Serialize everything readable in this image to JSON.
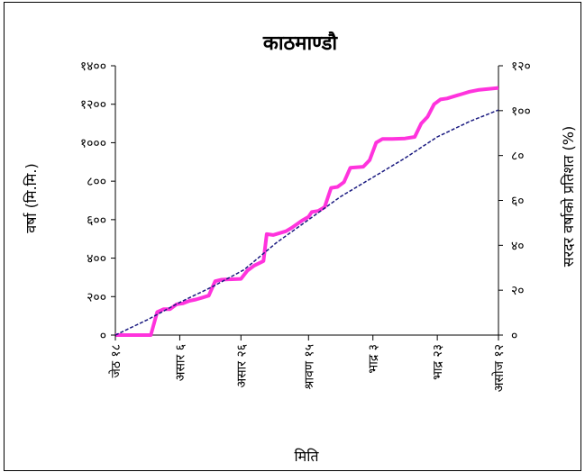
{
  "chart_data": {
    "type": "line",
    "title": "काठमाण्डौ",
    "xlabel": "मिति",
    "ylabel_left": "वर्षा (मि.मि.)",
    "ylabel_right": "सरदर वर्षाको प्रतिशत (%)",
    "ylim_left": [
      0,
      1400
    ],
    "ylim_right": [
      0,
      120
    ],
    "yticks_left": [
      {
        "value": 0,
        "label": "०"
      },
      {
        "value": 200,
        "label": "२००"
      },
      {
        "value": 400,
        "label": "४००"
      },
      {
        "value": 600,
        "label": "६००"
      },
      {
        "value": 800,
        "label": "८००"
      },
      {
        "value": 1000,
        "label": "१०००"
      },
      {
        "value": 1200,
        "label": "१२००"
      },
      {
        "value": 1400,
        "label": "१४००"
      }
    ],
    "yticks_right": [
      {
        "value": 0,
        "label": "०"
      },
      {
        "value": 20,
        "label": "२०"
      },
      {
        "value": 40,
        "label": "४०"
      },
      {
        "value": 60,
        "label": "६०"
      },
      {
        "value": 80,
        "label": "८०"
      },
      {
        "value": 100,
        "label": "१००"
      },
      {
        "value": 120,
        "label": "१२०"
      }
    ],
    "xlim": [
      0,
      119
    ],
    "xticks": [
      {
        "value": 0,
        "label": "जेठ १८"
      },
      {
        "value": 20,
        "label": "असार ६"
      },
      {
        "value": 39,
        "label": "असार २६"
      },
      {
        "value": 60,
        "label": "श्रावण १५"
      },
      {
        "value": 80,
        "label": "भाद्र ३"
      },
      {
        "value": 100,
        "label": "भाद्र २३"
      },
      {
        "value": 119,
        "label": "असोज १२"
      }
    ],
    "series": [
      {
        "style": "solid",
        "color": "#ff33dd",
        "points": [
          [
            0,
            0
          ],
          [
            11,
            0
          ],
          [
            13,
            120
          ],
          [
            15,
            135
          ],
          [
            17,
            135
          ],
          [
            19,
            160
          ],
          [
            21,
            165
          ],
          [
            23,
            178
          ],
          [
            25,
            185
          ],
          [
            27,
            195
          ],
          [
            29,
            205
          ],
          [
            31,
            280
          ],
          [
            33,
            288
          ],
          [
            35,
            290
          ],
          [
            39,
            292
          ],
          [
            41,
            335
          ],
          [
            43,
            360
          ],
          [
            46,
            385
          ],
          [
            47,
            525
          ],
          [
            49,
            520
          ],
          [
            53,
            540
          ],
          [
            55,
            560
          ],
          [
            58,
            595
          ],
          [
            60,
            615
          ],
          [
            61,
            640
          ],
          [
            63,
            645
          ],
          [
            65,
            665
          ],
          [
            67,
            765
          ],
          [
            69,
            770
          ],
          [
            71,
            795
          ],
          [
            73,
            870
          ],
          [
            77,
            875
          ],
          [
            79,
            910
          ],
          [
            81,
            1000
          ],
          [
            83,
            1020
          ],
          [
            86,
            1020
          ],
          [
            90,
            1022
          ],
          [
            93,
            1030
          ],
          [
            95,
            1100
          ],
          [
            97,
            1135
          ],
          [
            99,
            1200
          ],
          [
            101,
            1225
          ],
          [
            103,
            1230
          ],
          [
            106,
            1245
          ],
          [
            108,
            1255
          ],
          [
            110,
            1265
          ],
          [
            113,
            1275
          ],
          [
            119,
            1285
          ]
        ]
      },
      {
        "style": "dashed",
        "color": "#1a1a80",
        "points": [
          [
            0,
            0
          ],
          [
            10,
            80
          ],
          [
            20,
            170
          ],
          [
            30,
            250
          ],
          [
            40,
            340
          ],
          [
            50,
            480
          ],
          [
            60,
            600
          ],
          [
            70,
            720
          ],
          [
            80,
            820
          ],
          [
            90,
            920
          ],
          [
            100,
            1030
          ],
          [
            110,
            1110
          ],
          [
            119,
            1170
          ]
        ]
      }
    ]
  }
}
